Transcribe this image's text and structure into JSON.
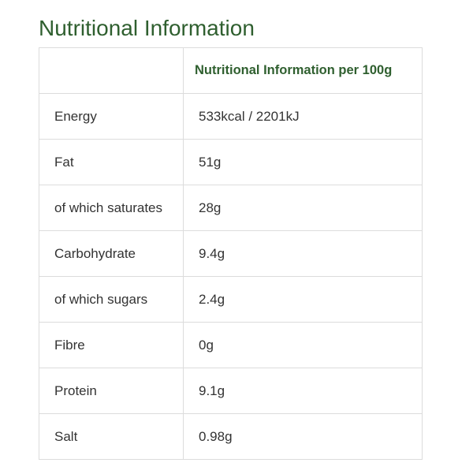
{
  "title": "Nutritional Information",
  "table": {
    "header": "Nutritional Information per 100g",
    "rows": [
      [
        "Energy",
        "533kcal / 2201kJ"
      ],
      [
        "Fat",
        "51g"
      ],
      [
        "of which saturates",
        "28g"
      ],
      [
        "Carbohydrate",
        "9.4g"
      ],
      [
        "of which sugars",
        "2.4g"
      ],
      [
        "Fibre",
        "0g"
      ],
      [
        "Protein",
        "9.1g"
      ],
      [
        "Salt",
        "0.98g"
      ]
    ]
  }
}
